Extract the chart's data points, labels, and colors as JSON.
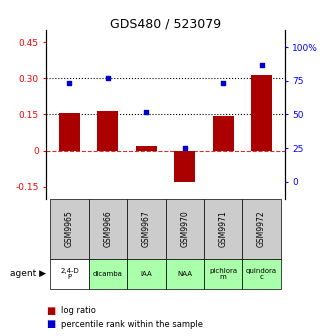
{
  "title": "GDS480 / 523079",
  "categories": [
    "GSM9965",
    "GSM9966",
    "GSM9967",
    "GSM9970",
    "GSM9971",
    "GSM9972"
  ],
  "agents": [
    "2,4-D\nP",
    "dicamba",
    "IAA",
    "NAA",
    "pichlora\nm",
    "quindora\nc"
  ],
  "agent_colors": [
    "#ffffff",
    "#aaffaa",
    "#aaffaa",
    "#aaffaa",
    "#aaffaa",
    "#aaffaa"
  ],
  "log_ratios": [
    0.155,
    0.165,
    0.02,
    -0.13,
    0.145,
    0.315
  ],
  "percentile_ranks_pct": [
    73,
    77,
    52,
    25,
    73,
    87
  ],
  "bar_color": "#aa0000",
  "dot_color": "#0000cc",
  "ylim_left": [
    -0.2,
    0.5
  ],
  "ylim_right": [
    -12.5,
    112.5
  ],
  "yticks_left": [
    -0.15,
    0.0,
    0.15,
    0.3,
    0.45
  ],
  "ytick_labels_left": [
    "-0.15",
    "0",
    "0.15",
    "0.30",
    "0.45"
  ],
  "yticks_right": [
    0,
    25,
    50,
    75,
    100
  ],
  "ytick_labels_right": [
    "0",
    "25",
    "50",
    "75",
    "100%"
  ],
  "hlines": [
    0.15,
    0.3
  ],
  "zero_line": 0,
  "cell_bg_color": "#cccccc",
  "bar_width": 0.55,
  "figsize": [
    3.31,
    3.36
  ],
  "dpi": 100
}
